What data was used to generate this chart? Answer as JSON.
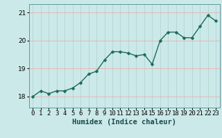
{
  "x": [
    0,
    1,
    2,
    3,
    4,
    5,
    6,
    7,
    8,
    9,
    10,
    11,
    12,
    13,
    14,
    15,
    16,
    17,
    18,
    19,
    20,
    21,
    22,
    23
  ],
  "y": [
    18.0,
    18.2,
    18.1,
    18.2,
    18.2,
    18.3,
    18.5,
    18.8,
    18.9,
    19.3,
    19.6,
    19.6,
    19.55,
    19.45,
    19.5,
    19.15,
    20.0,
    20.3,
    20.3,
    20.1,
    20.1,
    20.5,
    20.9,
    20.7
  ],
  "line_color": "#1a6b5a",
  "marker": "D",
  "marker_size": 2.5,
  "bg_color": "#cce9e9",
  "grid_y_color": "#e8b8b8",
  "grid_x_color": "#b8d8d8",
  "xlabel": "Humidex (Indice chaleur)",
  "ylim": [
    17.6,
    21.3
  ],
  "xlim": [
    -0.5,
    23.5
  ],
  "yticks": [
    18,
    19,
    20,
    21
  ],
  "xtick_labels": [
    "0",
    "1",
    "2",
    "3",
    "4",
    "5",
    "6",
    "7",
    "8",
    "9",
    "10",
    "11",
    "12",
    "13",
    "14",
    "15",
    "16",
    "17",
    "18",
    "19",
    "20",
    "21",
    "22",
    "23"
  ],
  "xlabel_fontsize": 7.5,
  "tick_fontsize": 6.5,
  "line_width": 1.0
}
